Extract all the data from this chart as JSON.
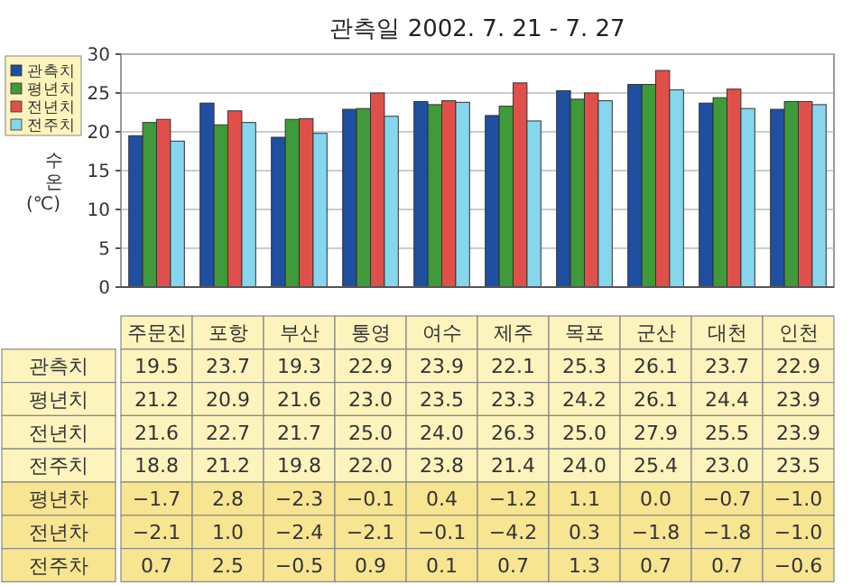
{
  "chart_data": [
    {
      "type": "bar",
      "title": "관측일 2002. 7. 21 - 7. 27",
      "ylabel": "수온(℃)",
      "categories": [
        "주문진",
        "포항",
        "부산",
        "통영",
        "여수",
        "제주",
        "목포",
        "군산",
        "대천",
        "인천"
      ],
      "ylim": [
        0,
        30
      ],
      "yticks": [
        0,
        5,
        10,
        15,
        20,
        25,
        30
      ],
      "grid": "y",
      "legend": "left",
      "series": [
        {
          "name": "관측치",
          "color": "#1f4fa0",
          "values": [
            19.5,
            23.7,
            19.3,
            22.9,
            23.9,
            22.1,
            25.3,
            26.1,
            23.7,
            22.9
          ],
          "value_labels": [
            "19.5",
            "23.7",
            "19.3",
            "22.9",
            "23.9",
            "22.1",
            "25.3",
            "26.1",
            "23.7",
            "22.9"
          ]
        },
        {
          "name": "평년치",
          "color": "#3f9a3a",
          "values": [
            21.2,
            20.9,
            21.6,
            23.0,
            23.5,
            23.3,
            24.2,
            26.1,
            24.4,
            23.9
          ],
          "value_labels": [
            "21.2",
            "20.9",
            "21.6",
            "23.0",
            "23.5",
            "23.3",
            "24.2",
            "26.1",
            "24.4",
            "23.9"
          ]
        },
        {
          "name": "전년치",
          "color": "#e0504a",
          "values": [
            21.6,
            22.7,
            21.7,
            25.0,
            24.0,
            26.3,
            25.0,
            27.9,
            25.5,
            23.9
          ],
          "value_labels": [
            "21.6",
            "22.7",
            "21.7",
            "25.0",
            "24.0",
            "26.3",
            "25.0",
            "27.9",
            "25.5",
            "23.9"
          ]
        },
        {
          "name": "전주치",
          "color": "#86d6ee",
          "values": [
            18.8,
            21.2,
            19.8,
            22.0,
            23.8,
            21.4,
            24.0,
            25.4,
            23.0,
            23.5
          ],
          "value_labels": [
            "18.8",
            "21.2",
            "19.8",
            "22.0",
            "23.8",
            "21.4",
            "24.0",
            "25.4",
            "23.0",
            "23.5"
          ]
        }
      ]
    },
    {
      "type": "other",
      "annotations": [
        "평년차",
        "−1.7",
        "2.8",
        "−2.3",
        "−0.1",
        "0.4",
        "−1.2",
        "1.1",
        "0.0",
        "−0.7",
        "−1.0",
        "전년차",
        "−2.1",
        "1.0",
        "−2.4",
        "−2.1",
        "−0.1",
        "−4.2",
        "0.3",
        "−1.8",
        "−1.8",
        "−1.0",
        "전주차",
        "0.7",
        "2.5",
        "−0.5",
        "0.9",
        "0.1",
        "0.7",
        "1.3",
        "0.7",
        "0.7",
        "−0.6"
      ]
    }
  ]
}
